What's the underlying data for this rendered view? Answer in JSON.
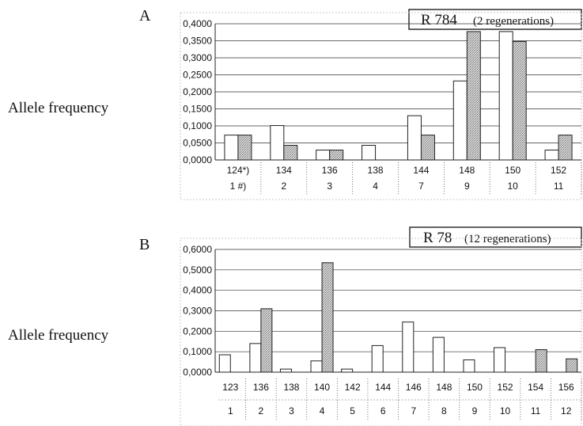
{
  "chart_data": [
    {
      "type": "bar",
      "panel": "A",
      "title": "R 784",
      "subtitle": "(2 regenerations)",
      "ylabel": "Allele frequency",
      "ylim": [
        0,
        0.4
      ],
      "yticks": [
        "0,0000",
        "0,0500",
        "0,1000",
        "0,1500",
        "0,2000",
        "0,2500",
        "0,3000",
        "0,3500",
        "0,4000"
      ],
      "categories": [
        "124*)",
        "134",
        "136",
        "138",
        "144",
        "148",
        "150",
        "152"
      ],
      "category_numbers": [
        "1 #)",
        "2",
        "3",
        "4",
        "7",
        "9",
        "10",
        "11"
      ],
      "series": [
        {
          "values": [
            0.073,
            0.101,
            0.029,
            0.043,
            0.13,
            0.232,
            0.377,
            0.029
          ]
        },
        {
          "values": [
            0.073,
            0.043,
            0.029,
            0.0,
            0.073,
            0.377,
            0.348,
            0.073
          ]
        }
      ],
      "colors": {
        "white": "#ffffff",
        "dotted": "#c8c8c8"
      }
    },
    {
      "type": "bar",
      "panel": "B",
      "title": "R 78",
      "subtitle": "(12 regenerations)",
      "ylabel": "Allele frequency",
      "ylim": [
        0,
        0.6
      ],
      "yticks": [
        "0,0000",
        "0,1000",
        "0,2000",
        "0,3000",
        "0,4000",
        "0,5000",
        "0,6000"
      ],
      "categories": [
        "123",
        "136",
        "138",
        "140",
        "142",
        "144",
        "146",
        "148",
        "150",
        "152",
        "154",
        "156"
      ],
      "category_numbers": [
        "1",
        "2",
        "3",
        "4",
        "5",
        "6",
        "7",
        "8",
        "9",
        "10",
        "11",
        "12"
      ],
      "series": [
        {
          "values": [
            0.085,
            0.14,
            0.015,
            0.055,
            0.015,
            0.13,
            0.245,
            0.17,
            0.06,
            0.12,
            0.0,
            0.0
          ]
        },
        {
          "values": [
            0.0,
            0.31,
            0.0,
            0.535,
            0.0,
            0.0,
            0.0,
            0.0,
            0.0,
            0.0,
            0.11,
            0.065
          ]
        }
      ],
      "colors": {
        "white": "#ffffff",
        "dotted": "#c8c8c8"
      }
    }
  ]
}
